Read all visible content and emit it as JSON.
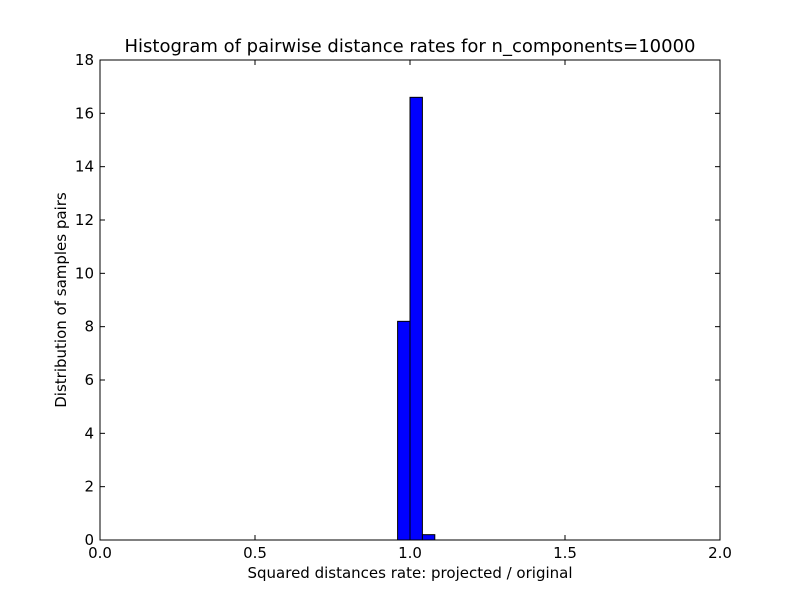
{
  "chart_data": {
    "type": "bar",
    "title": "Histogram of pairwise distance rates for n_components=10000",
    "xlabel": "Squared distances rate: projected / original",
    "ylabel": "Distribution of samples pairs",
    "xlim": [
      0.0,
      2.0
    ],
    "ylim": [
      0,
      18
    ],
    "xticks": [
      "0.0",
      "0.5",
      "1.0",
      "1.5",
      "2.0"
    ],
    "yticks": [
      "0",
      "2",
      "4",
      "6",
      "8",
      "10",
      "12",
      "14",
      "16",
      "18"
    ],
    "bin_width": 0.04,
    "bins": [
      {
        "x0": 0.96,
        "value": 8.2
      },
      {
        "x0": 1.0,
        "value": 16.6
      },
      {
        "x0": 1.04,
        "value": 0.2
      }
    ],
    "bar_color": "#0000ff",
    "edge_color": "#000000",
    "grid": false
  }
}
